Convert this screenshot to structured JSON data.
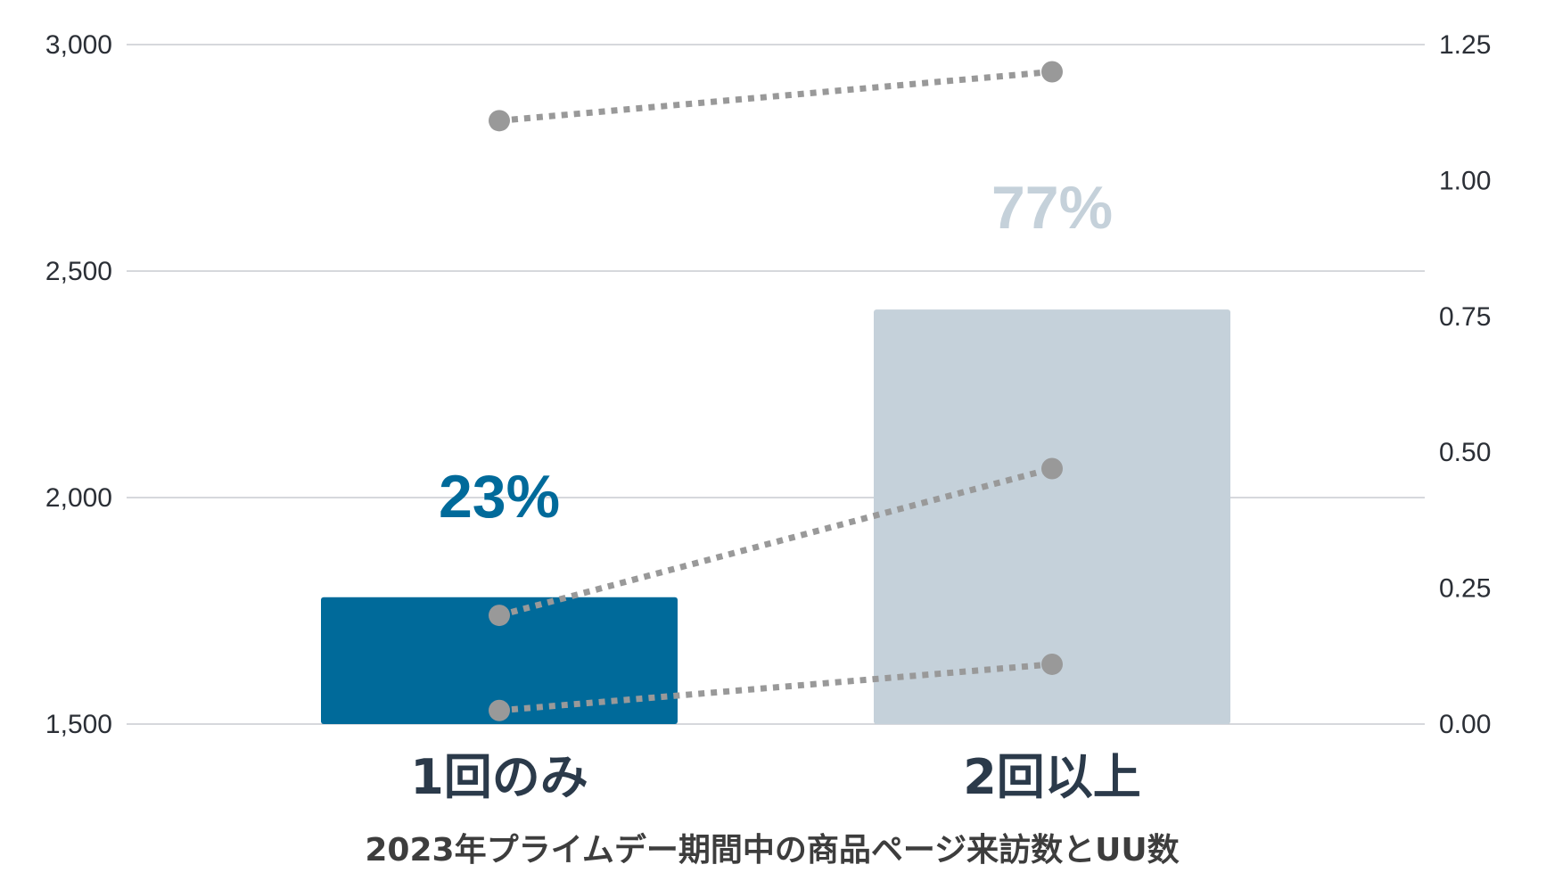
{
  "chart_data": {
    "type": "bar",
    "title": "",
    "caption": "2023年プライムデー期間中の商品ページ来訪数とUU数",
    "categories": [
      "1回のみ",
      "2回以上"
    ],
    "left_axis": {
      "range": [
        1500,
        3000
      ],
      "ticks": [
        1500,
        2000,
        2500,
        3000
      ],
      "tick_labels": [
        "1,500",
        "2,000",
        "2,500",
        "3,000"
      ]
    },
    "right_axis": {
      "range": [
        0,
        1.25
      ],
      "ticks": [
        0,
        0.25,
        0.5,
        0.75,
        1.0,
        1.25
      ],
      "tick_labels": [
        "0.00",
        "0.25",
        "0.50",
        "0.75",
        "1.00",
        "1.25"
      ]
    },
    "bars": {
      "axis": "left",
      "values": [
        1780,
        2415
      ],
      "colors": [
        "#006a9a",
        "#c5d1da"
      ]
    },
    "bar_labels": [
      "23%",
      "77%"
    ],
    "bar_label_colors": [
      "#006a9a",
      "#c5d1da"
    ],
    "lines": [
      {
        "axis": "right",
        "style": "dotted",
        "color": "#999999",
        "values": [
          1.11,
          1.2
        ]
      },
      {
        "axis": "right",
        "style": "dotted",
        "color": "#999999",
        "values": [
          0.2,
          0.47
        ]
      },
      {
        "axis": "right",
        "style": "dotted",
        "color": "#999999",
        "values": [
          0.025,
          0.11
        ]
      }
    ],
    "grid": true,
    "legend": "none"
  }
}
